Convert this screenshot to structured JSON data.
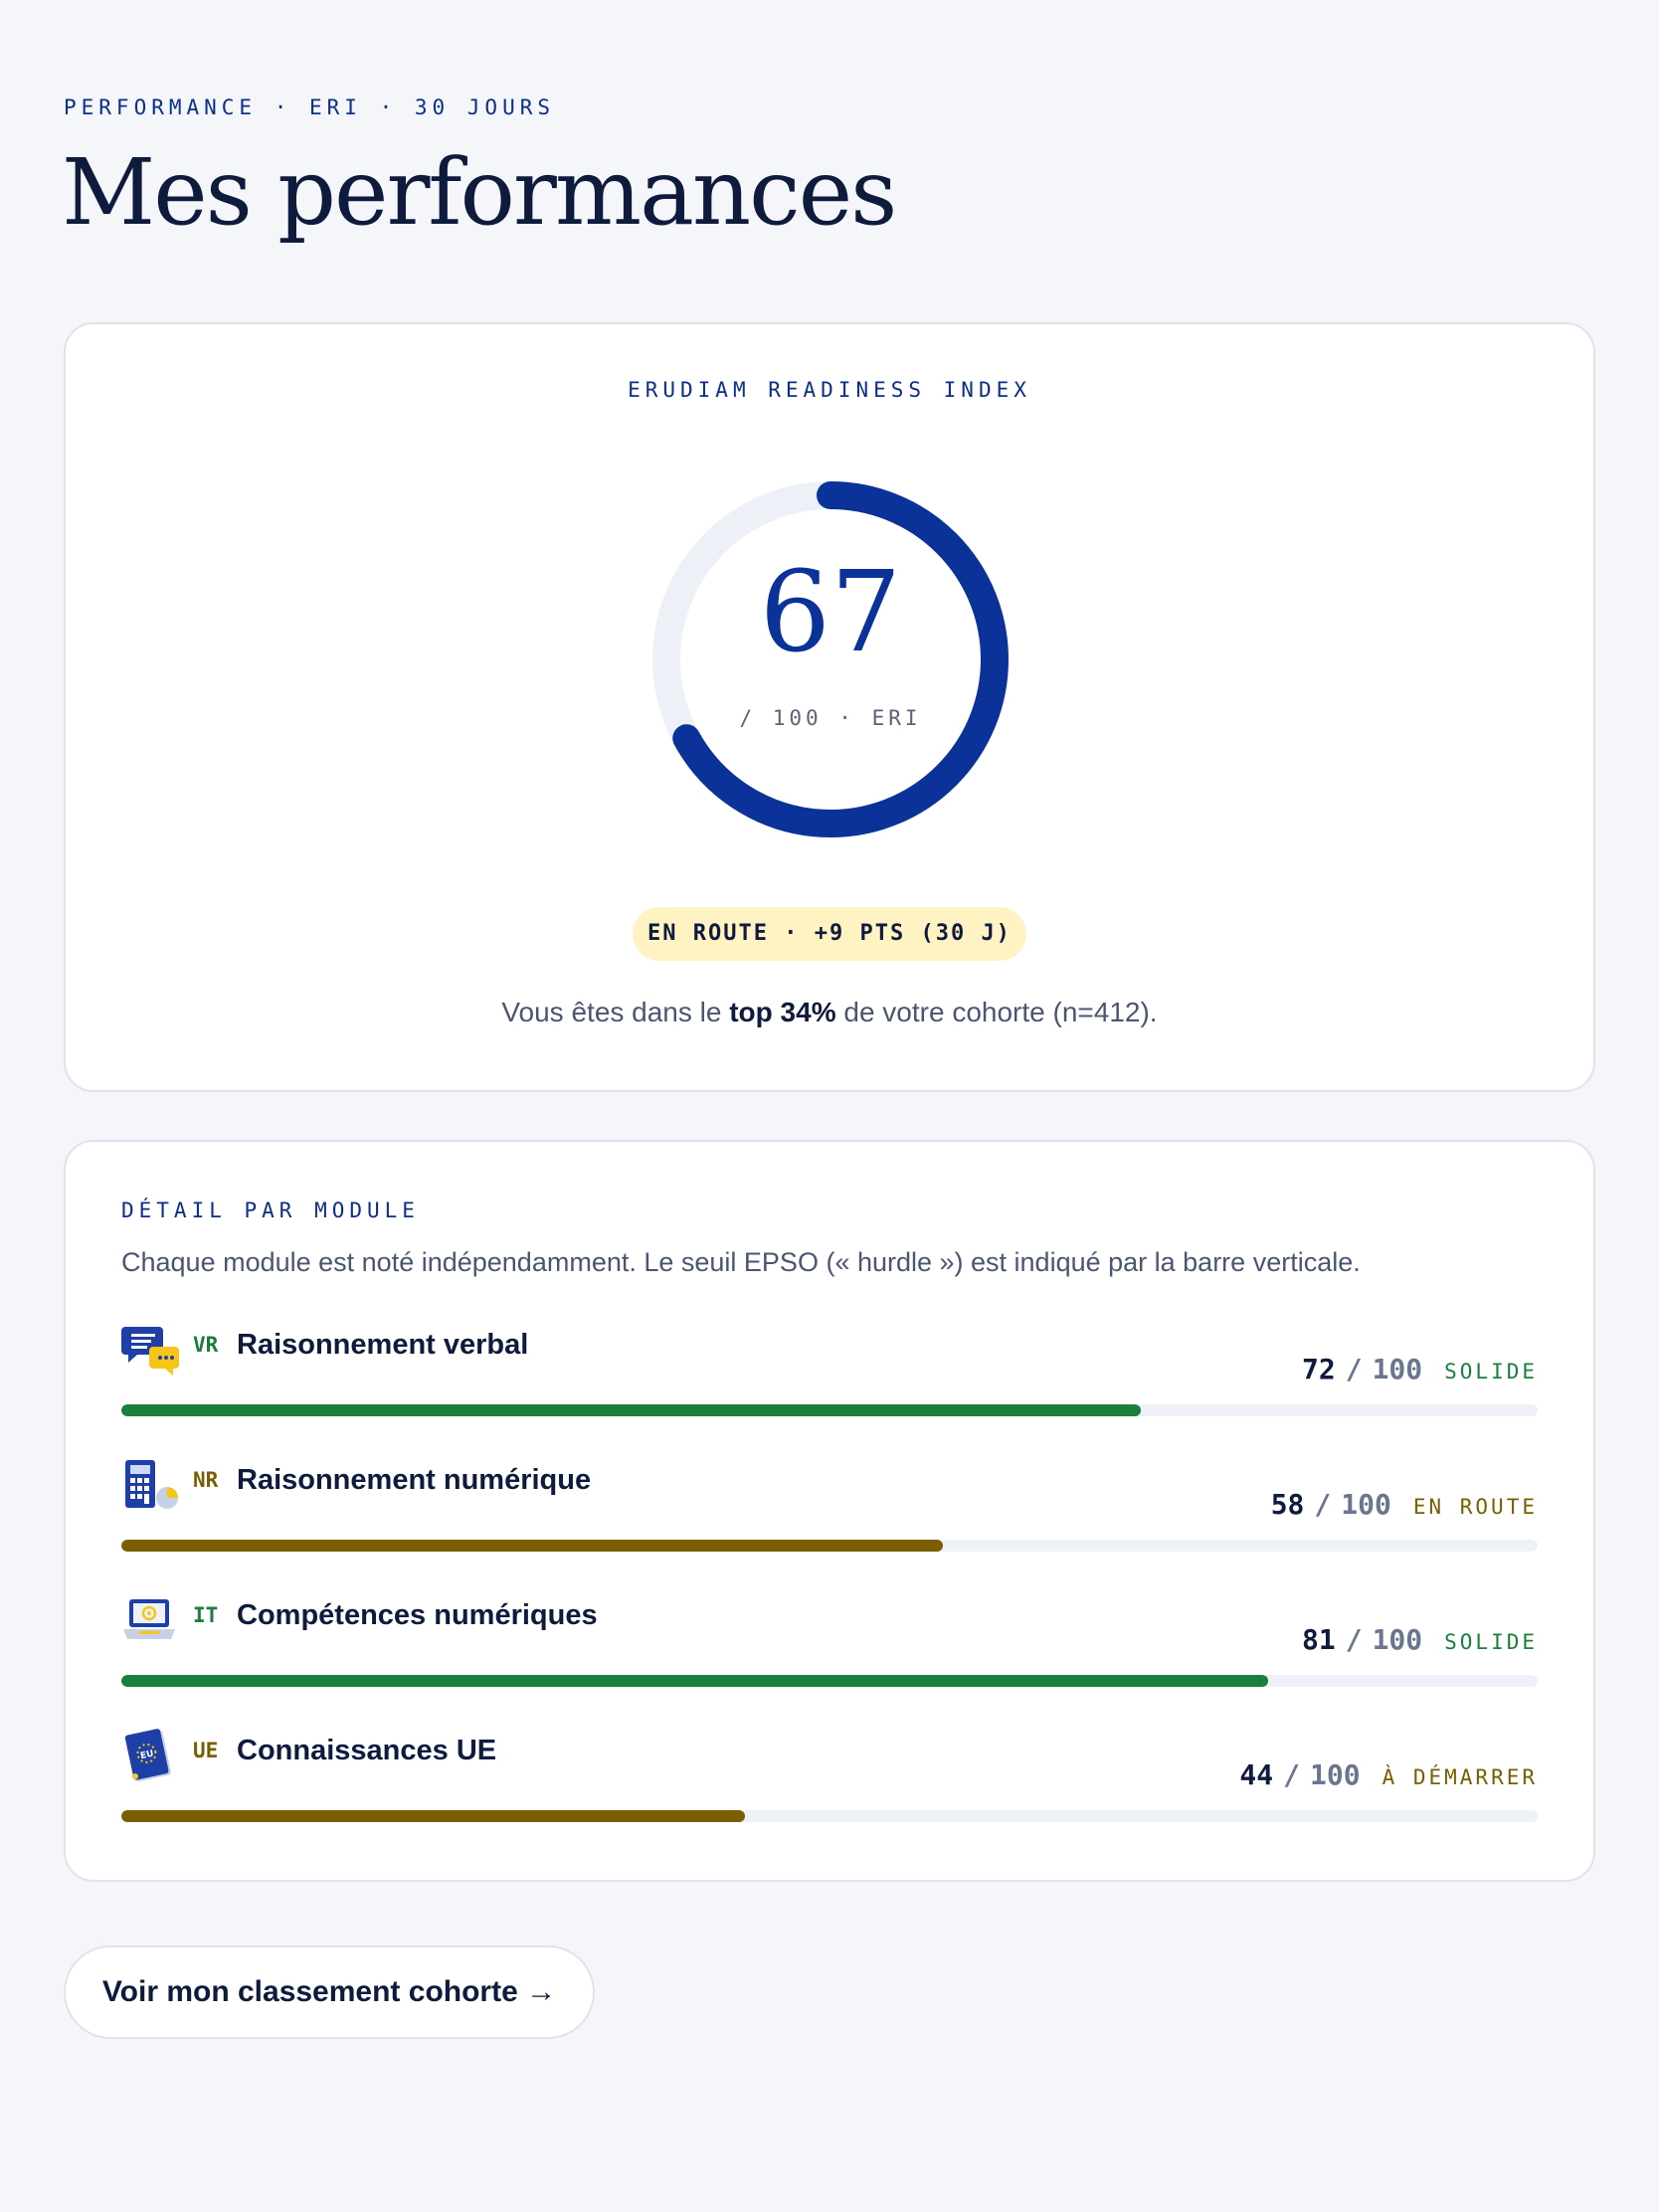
{
  "header": {
    "eyebrow": "PERFORMANCE · ERI · 30 JOURS",
    "title": "Mes performances"
  },
  "eri": {
    "label": "ERUDIAM READINESS INDEX",
    "score": "67",
    "score_value": 67,
    "max": 100,
    "unit": "/ 100 · ERI",
    "status": "EN ROUTE · +9 PTS (30 J)",
    "cohort_prefix": "Vous êtes dans le ",
    "cohort_highlight": "top 34%",
    "cohort_suffix": " de votre cohorte (n=412).",
    "colors": {
      "arc": "#0a3299",
      "track": "#edf0f6",
      "pill": "#fff3c4"
    }
  },
  "modules_section": {
    "label": "DÉTAIL PAR MODULE",
    "description": "Chaque module est noté indépendamment. Le seuil EPSO (« hurdle ») est indiqué par la barre verticale.",
    "modules": [
      {
        "code": "VR",
        "name": "Raisonnement verbal",
        "score": "72",
        "value": 72,
        "max": "100",
        "status": "SOLIDE",
        "color": "#1a7f3c",
        "icon": "speech-bubbles-icon"
      },
      {
        "code": "NR",
        "name": "Raisonnement numérique",
        "score": "58",
        "value": 58,
        "max": "100",
        "status": "EN ROUTE",
        "color": "#7a5f00",
        "icon": "calculator-icon"
      },
      {
        "code": "IT",
        "name": "Compétences numériques",
        "score": "81",
        "value": 81,
        "max": "100",
        "status": "SOLIDE",
        "color": "#1a7f3c",
        "icon": "laptop-icon"
      },
      {
        "code": "UE",
        "name": "Connaissances UE",
        "score": "44",
        "value": 44,
        "max": "100",
        "status": "À DÉMARRER",
        "color": "#7a5f00",
        "icon": "eu-book-icon"
      }
    ]
  },
  "cta": {
    "label": "Voir mon classement cohorte →"
  }
}
